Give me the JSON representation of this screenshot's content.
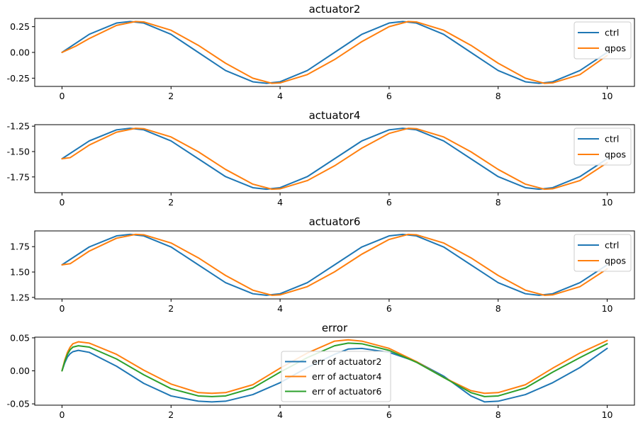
{
  "chart_data": [
    {
      "type": "line",
      "title": "actuator2",
      "xlabel": "",
      "ylabel": "",
      "xlim": [
        -0.5,
        10.5
      ],
      "ylim": [
        -0.33,
        0.33
      ],
      "xticks": [
        0,
        2,
        4,
        6,
        8,
        10
      ],
      "xtick_labels": [
        "0",
        "2",
        "4",
        "6",
        "8",
        "10"
      ],
      "yticks": [
        -0.25,
        0.0,
        0.25
      ],
      "ytick_labels": [
        "-0.25",
        "0.00",
        "0.25"
      ],
      "grid": false,
      "legend_position": "top-right",
      "series": [
        {
          "name": "ctrl",
          "color": "#1f77b4",
          "x": [
            0,
            0.5,
            1,
            1.25,
            1.5,
            2,
            2.5,
            3,
            3.5,
            3.75,
            4,
            4.5,
            5,
            5.5,
            6,
            6.25,
            6.5,
            7,
            7.5,
            8,
            8.5,
            8.75,
            9,
            9.5,
            10
          ],
          "values": [
            0.0,
            0.176,
            0.285,
            0.3,
            0.285,
            0.176,
            0.0,
            -0.176,
            -0.285,
            -0.3,
            -0.285,
            -0.176,
            0.0,
            0.176,
            0.285,
            0.3,
            0.285,
            0.176,
            0.0,
            -0.176,
            -0.285,
            -0.3,
            -0.285,
            -0.176,
            0.0
          ]
        },
        {
          "name": "qpos",
          "color": "#ff7f0e",
          "x": [
            0,
            0.25,
            0.5,
            1,
            1.35,
            1.5,
            2,
            2.5,
            3,
            3.5,
            3.85,
            4,
            4.5,
            5,
            5.5,
            6,
            6.35,
            6.5,
            7,
            7.5,
            8,
            8.5,
            8.85,
            9,
            9.5,
            10
          ],
          "values": [
            0.0,
            0.06,
            0.135,
            0.262,
            0.3,
            0.296,
            0.215,
            0.069,
            -0.105,
            -0.25,
            -0.3,
            -0.296,
            -0.215,
            -0.069,
            0.105,
            0.25,
            0.3,
            0.296,
            0.215,
            0.069,
            -0.105,
            -0.25,
            -0.3,
            -0.296,
            -0.215,
            -0.03
          ]
        }
      ]
    },
    {
      "type": "line",
      "title": "actuator4",
      "xlabel": "",
      "ylabel": "",
      "xlim": [
        -0.5,
        10.5
      ],
      "ylim": [
        -1.905,
        -1.235
      ],
      "xticks": [
        0,
        2,
        4,
        6,
        8,
        10
      ],
      "xtick_labels": [
        "0",
        "2",
        "4",
        "6",
        "8",
        "10"
      ],
      "yticks": [
        -1.75,
        -1.5,
        -1.25
      ],
      "ytick_labels": [
        "-1.75",
        "-1.50",
        "-1.25"
      ],
      "grid": false,
      "legend_position": "top-right",
      "series": [
        {
          "name": "ctrl",
          "color": "#1f77b4",
          "x": [
            0,
            0.5,
            1,
            1.25,
            1.5,
            2,
            2.5,
            3,
            3.5,
            3.75,
            4,
            4.5,
            5,
            5.5,
            6,
            6.25,
            6.5,
            7,
            7.5,
            8,
            8.5,
            8.75,
            9,
            9.5,
            10
          ],
          "values": [
            -1.571,
            -1.395,
            -1.286,
            -1.271,
            -1.286,
            -1.395,
            -1.571,
            -1.747,
            -1.856,
            -1.871,
            -1.856,
            -1.747,
            -1.571,
            -1.395,
            -1.286,
            -1.271,
            -1.286,
            -1.395,
            -1.571,
            -1.747,
            -1.856,
            -1.871,
            -1.856,
            -1.747,
            -1.571
          ]
        },
        {
          "name": "qpos",
          "color": "#ff7f0e",
          "x": [
            0,
            0.15,
            0.5,
            1,
            1.35,
            1.5,
            2,
            2.5,
            3,
            3.5,
            3.85,
            4,
            4.5,
            5,
            5.5,
            6,
            6.35,
            6.5,
            7,
            7.5,
            8,
            8.5,
            8.85,
            9,
            9.5,
            10
          ],
          "values": [
            -1.571,
            -1.56,
            -1.436,
            -1.309,
            -1.271,
            -1.275,
            -1.356,
            -1.502,
            -1.676,
            -1.821,
            -1.871,
            -1.867,
            -1.786,
            -1.64,
            -1.466,
            -1.321,
            -1.271,
            -1.275,
            -1.356,
            -1.502,
            -1.676,
            -1.821,
            -1.871,
            -1.867,
            -1.786,
            -1.61
          ]
        }
      ]
    },
    {
      "type": "line",
      "title": "actuator6",
      "xlabel": "",
      "ylabel": "",
      "xlim": [
        -0.5,
        10.5
      ],
      "ylim": [
        1.235,
        1.905
      ],
      "xticks": [
        0,
        2,
        4,
        6,
        8,
        10
      ],
      "xtick_labels": [
        "0",
        "2",
        "4",
        "6",
        "8",
        "10"
      ],
      "yticks": [
        1.25,
        1.5,
        1.75
      ],
      "ytick_labels": [
        "1.25",
        "1.50",
        "1.75"
      ],
      "grid": false,
      "legend_position": "top-right",
      "series": [
        {
          "name": "ctrl",
          "color": "#1f77b4",
          "x": [
            0,
            0.5,
            1,
            1.25,
            1.5,
            2,
            2.5,
            3,
            3.5,
            3.75,
            4,
            4.5,
            5,
            5.5,
            6,
            6.25,
            6.5,
            7,
            7.5,
            8,
            8.5,
            8.75,
            9,
            9.5,
            10
          ],
          "values": [
            1.571,
            1.747,
            1.856,
            1.871,
            1.856,
            1.747,
            1.571,
            1.395,
            1.286,
            1.271,
            1.286,
            1.395,
            1.571,
            1.747,
            1.856,
            1.871,
            1.856,
            1.747,
            1.571,
            1.395,
            1.286,
            1.271,
            1.286,
            1.395,
            1.571
          ]
        },
        {
          "name": "qpos",
          "color": "#ff7f0e",
          "x": [
            0,
            0.15,
            0.5,
            1,
            1.35,
            1.5,
            2,
            2.5,
            3,
            3.5,
            3.85,
            4,
            4.5,
            5,
            5.5,
            6,
            6.35,
            6.5,
            7,
            7.5,
            8,
            8.5,
            8.85,
            9,
            9.5,
            10
          ],
          "values": [
            1.571,
            1.582,
            1.706,
            1.833,
            1.871,
            1.867,
            1.786,
            1.64,
            1.466,
            1.321,
            1.271,
            1.275,
            1.356,
            1.502,
            1.676,
            1.821,
            1.871,
            1.867,
            1.786,
            1.64,
            1.466,
            1.321,
            1.271,
            1.275,
            1.356,
            1.531
          ]
        }
      ]
    },
    {
      "type": "line",
      "title": "error",
      "xlabel": "",
      "ylabel": "",
      "xlim": [
        -0.5,
        10.5
      ],
      "ylim": [
        -0.052,
        0.051
      ],
      "xticks": [
        0,
        2,
        4,
        6,
        8,
        10
      ],
      "xtick_labels": [
        "0",
        "2",
        "4",
        "6",
        "8",
        "10"
      ],
      "yticks": [
        -0.05,
        0.0,
        0.05
      ],
      "ytick_labels": [
        "-0.05",
        "0.00",
        "0.05"
      ],
      "grid": false,
      "legend_position": "lower-center",
      "series": [
        {
          "name": "err of actuator2",
          "color": "#1f77b4",
          "x": [
            0,
            0.05,
            0.1,
            0.15,
            0.2,
            0.3,
            0.5,
            1.0,
            1.5,
            2.0,
            2.5,
            2.75,
            3.0,
            3.5,
            4.0,
            4.5,
            5.0,
            5.25,
            5.5,
            6.0,
            6.5,
            7.0,
            7.5,
            7.75,
            8.0,
            8.5,
            9.0,
            9.5,
            10.0
          ],
          "values": [
            0.0,
            0.012,
            0.021,
            0.026,
            0.029,
            0.031,
            0.028,
            0.007,
            -0.019,
            -0.038,
            -0.046,
            -0.047,
            -0.046,
            -0.036,
            -0.018,
            0.005,
            0.025,
            0.033,
            0.034,
            0.028,
            0.014,
            -0.008,
            -0.038,
            -0.047,
            -0.046,
            -0.036,
            -0.018,
            0.005,
            0.034
          ]
        },
        {
          "name": "err of actuator4",
          "color": "#ff7f0e",
          "x": [
            0,
            0.05,
            0.1,
            0.15,
            0.2,
            0.3,
            0.5,
            1.0,
            1.5,
            2.0,
            2.5,
            2.75,
            3.0,
            3.5,
            4.0,
            4.5,
            5.0,
            5.25,
            5.5,
            6.0,
            6.5,
            7.0,
            7.5,
            7.75,
            8.0,
            8.5,
            9.0,
            9.5,
            10.0
          ],
          "values": [
            0.0,
            0.016,
            0.028,
            0.036,
            0.041,
            0.044,
            0.042,
            0.025,
            0.001,
            -0.02,
            -0.033,
            -0.034,
            -0.033,
            -0.021,
            0.004,
            0.027,
            0.045,
            0.047,
            0.045,
            0.034,
            0.014,
            -0.01,
            -0.03,
            -0.034,
            -0.033,
            -0.021,
            0.004,
            0.027,
            0.046
          ]
        },
        {
          "name": "err of actuator6",
          "color": "#2ca02c",
          "x": [
            0,
            0.05,
            0.1,
            0.15,
            0.2,
            0.3,
            0.5,
            1.0,
            1.5,
            2.0,
            2.5,
            2.75,
            3.0,
            3.5,
            4.0,
            4.5,
            5.0,
            5.25,
            5.5,
            6.0,
            6.5,
            7.0,
            7.5,
            7.75,
            8.0,
            8.5,
            9.0,
            9.5,
            10.0
          ],
          "values": [
            0.0,
            0.014,
            0.025,
            0.032,
            0.036,
            0.038,
            0.036,
            0.018,
            -0.006,
            -0.027,
            -0.038,
            -0.039,
            -0.038,
            -0.026,
            -0.002,
            0.02,
            0.038,
            0.042,
            0.041,
            0.031,
            0.013,
            -0.01,
            -0.033,
            -0.039,
            -0.038,
            -0.026,
            -0.002,
            0.02,
            0.041
          ]
        }
      ]
    }
  ]
}
